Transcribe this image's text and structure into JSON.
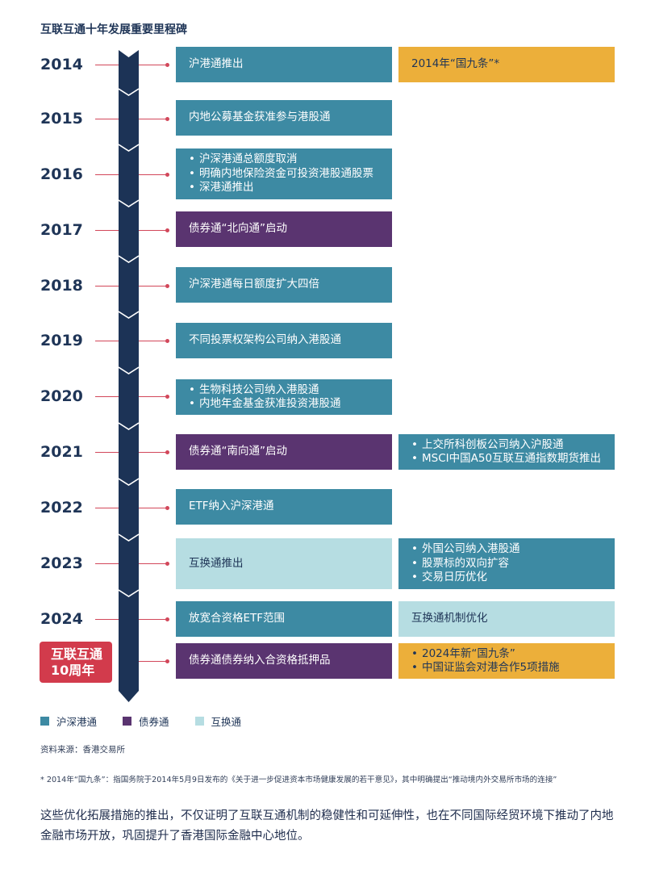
{
  "title": "互联互通十年发展重要里程碑",
  "colors": {
    "hk_connect": "#3d8aa3",
    "bond_connect": "#5a3470",
    "swap_connect": "#b6dde2",
    "gold": "#ecaf3a",
    "spine": "#1c3356",
    "badge": "#d23b4c"
  },
  "years": [
    "2014",
    "2015",
    "2016",
    "2017",
    "2018",
    "2019",
    "2020",
    "2021",
    "2022",
    "2023",
    "2024"
  ],
  "badge": {
    "line1": "互联互通",
    "line2": "10周年"
  },
  "milestones": {
    "y2014": {
      "main": "沪港通推出",
      "side": "2014年“国九条”*"
    },
    "y2015": {
      "main": "内地公募基金获准参与港股通"
    },
    "y2016": {
      "items": [
        "沪深港通总额度取消",
        "明确内地保险资金可投资港股通股票",
        "深港通推出"
      ]
    },
    "y2017": {
      "main": "债券通“北向通”启动"
    },
    "y2018": {
      "main": "沪深港通每日额度扩大四倍"
    },
    "y2019": {
      "main": "不同投票权架构公司纳入港股通"
    },
    "y2020": {
      "items": [
        "生物科技公司纳入港股通",
        "内地年金基金获准投资港股通"
      ]
    },
    "y2021": {
      "main": "债券通“南向通”启动",
      "side_items": [
        "上交所科创板公司纳入沪股通",
        "MSCI中国A50互联互通指数期货推出"
      ]
    },
    "y2022": {
      "main": "ETF纳入沪深港通"
    },
    "y2023": {
      "main": "互换通推出",
      "side_items": [
        "外国公司纳入港股通",
        "股票标的双向扩容",
        "交易日历优化"
      ]
    },
    "y2024": {
      "main": "放宽合资格ETF范围",
      "side": "互换通机制优化"
    },
    "anniv": {
      "main": "债券通债券纳入合资格抵押品",
      "side_items": [
        "2024年新“国九条”",
        "中国证监会对港合作5项措施"
      ]
    }
  },
  "legend": [
    {
      "label": "沪深港通",
      "color": "#3d8aa3"
    },
    {
      "label": "债券通",
      "color": "#5a3470"
    },
    {
      "label": "互换通",
      "color": "#b6dde2"
    }
  ],
  "source": "资料来源：香港交易所",
  "footnote": "* 2014年“国九条”：指国务院于2014年5月9日发布的《关于进一步促进资本市场健康发展的若干意见》，其中明确提出“推动境内外交易所市场的连接”",
  "paragraph": "这些优化拓展措施的推出，不仅证明了互联互通机制的稳健性和可延伸性，也在不同国际经贸环境下推动了内地金融市场开放，巩固提升了香港国际金融中心地位。"
}
